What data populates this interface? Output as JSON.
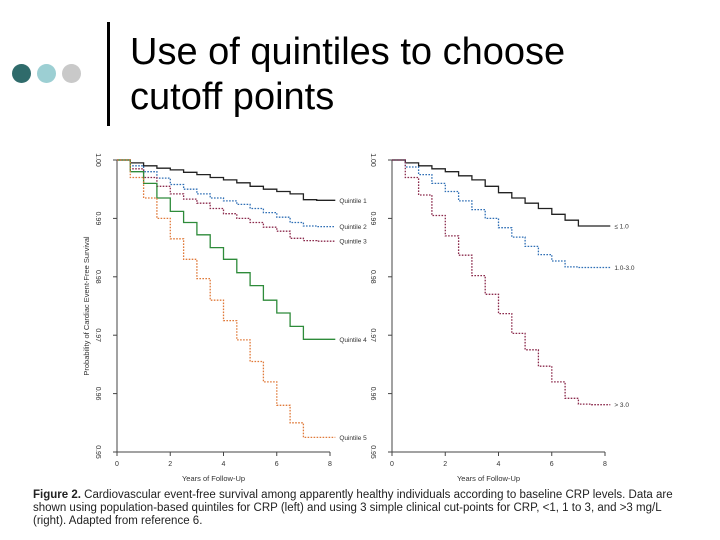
{
  "slide": {
    "title_line1": "Use of quintiles to choose",
    "title_line2": "cutoff points",
    "dot_colors": [
      "#2f6b6b",
      "#9ccfd3",
      "#c9c9c9"
    ],
    "caption_label": "Figure 2.",
    "caption_text": " Cardiovascular event-free survival among apparently healthy individuals according to baseline CRP levels. Data are shown using population-based quintiles for CRP (left) and using 3 simple clinical cut-points for CRP, <1, 1 to 3, and >3 mg/L (right). Adapted from reference 6."
  },
  "chart_data": [
    {
      "type": "line",
      "title": "",
      "xlabel": "Years of Follow-Up",
      "ylabel": "Probability of Cardiac Event-Free Survival",
      "xlim": [
        0,
        8
      ],
      "ylim": [
        0.95,
        1.0
      ],
      "x_ticks": [
        "0",
        "2",
        "4",
        "6",
        "8"
      ],
      "y_ticks": [
        "1.00",
        "0.99",
        "0.98",
        "0.97",
        "0.96",
        "0.95"
      ],
      "step": true,
      "series": [
        {
          "name": "Quintile 1",
          "color": "#222222",
          "dash": "solid",
          "x": [
            0,
            0.5,
            1,
            1.5,
            2,
            2.5,
            3,
            3.5,
            4,
            4.5,
            5,
            5.5,
            6,
            6.5,
            7,
            7.5,
            8.2
          ],
          "y": [
            1.0,
            0.9995,
            0.999,
            0.9986,
            0.9983,
            0.9979,
            0.9975,
            0.997,
            0.9966,
            0.9961,
            0.9955,
            0.995,
            0.9946,
            0.9942,
            0.9932,
            0.9931,
            0.9931
          ]
        },
        {
          "name": "Quintile 2",
          "color": "#2f6fb5",
          "dash": "dotted",
          "x": [
            0,
            0.5,
            1,
            1.5,
            2,
            2.5,
            3,
            3.5,
            4,
            4.5,
            5,
            5.5,
            6,
            6.5,
            7,
            7.5,
            8.2
          ],
          "y": [
            1.0,
            0.999,
            0.998,
            0.9969,
            0.9958,
            0.995,
            0.9942,
            0.9935,
            0.993,
            0.9924,
            0.9917,
            0.991,
            0.9902,
            0.9893,
            0.9887,
            0.9886,
            0.9886
          ]
        },
        {
          "name": "Quintile 3",
          "color": "#8b2a4c",
          "dash": "dotted",
          "x": [
            0,
            0.5,
            1,
            1.5,
            2,
            2.5,
            3,
            3.5,
            4,
            4.5,
            5,
            5.5,
            6,
            6.5,
            7,
            7.5,
            8.2
          ],
          "y": [
            1.0,
            0.9985,
            0.997,
            0.9955,
            0.9942,
            0.9933,
            0.9926,
            0.9917,
            0.9908,
            0.99,
            0.9893,
            0.9885,
            0.9878,
            0.9866,
            0.9862,
            0.9861,
            0.9861
          ]
        },
        {
          "name": "Quintile 4",
          "color": "#2e8b3a",
          "dash": "solid",
          "x": [
            0,
            0.5,
            1,
            1.5,
            2,
            2.5,
            3,
            3.5,
            4,
            4.5,
            5,
            5.5,
            6,
            6.5,
            7,
            7.5,
            8.2
          ],
          "y": [
            1.0,
            0.998,
            0.996,
            0.9935,
            0.9912,
            0.9893,
            0.9872,
            0.985,
            0.983,
            0.9807,
            0.9785,
            0.976,
            0.9738,
            0.9715,
            0.9693,
            0.9693,
            0.9693
          ]
        },
        {
          "name": "Quintile 5",
          "color": "#e07a3a",
          "dash": "dotted",
          "x": [
            0,
            0.5,
            1,
            1.5,
            2,
            2.5,
            3,
            3.5,
            4,
            4.5,
            5,
            5.5,
            6,
            6.5,
            7,
            7.5,
            8.2
          ],
          "y": [
            1.0,
            0.997,
            0.9935,
            0.99,
            0.9865,
            0.983,
            0.9797,
            0.976,
            0.9725,
            0.9692,
            0.9655,
            0.962,
            0.958,
            0.955,
            0.9525,
            0.9525,
            0.9525
          ]
        }
      ],
      "labels": [
        "Quintile 1",
        "Quintile 2",
        "Quintile 3",
        "Quintile 4",
        "Quintile 5"
      ]
    },
    {
      "type": "line",
      "title": "",
      "xlabel": "Years of Follow-Up",
      "ylabel": "",
      "xlim": [
        0,
        8
      ],
      "ylim": [
        0.95,
        1.0
      ],
      "x_ticks": [
        "0",
        "2",
        "4",
        "6",
        "8"
      ],
      "y_ticks": [
        "1.00",
        "0.99",
        "0.98",
        "0.97",
        "0.96",
        "0.95"
      ],
      "step": true,
      "series": [
        {
          "name": "≤ 1.0",
          "color": "#222222",
          "dash": "solid",
          "x": [
            0,
            0.5,
            1,
            1.5,
            2,
            2.5,
            3,
            3.5,
            4,
            4.5,
            5,
            5.5,
            6,
            6.5,
            7,
            7.5,
            8.2
          ],
          "y": [
            1.0,
            0.9995,
            0.999,
            0.9985,
            0.998,
            0.9973,
            0.9966,
            0.9955,
            0.9944,
            0.9935,
            0.9926,
            0.9917,
            0.9907,
            0.9897,
            0.9887,
            0.9887,
            0.9887
          ]
        },
        {
          "name": "1.0-3.0",
          "color": "#2f6fb5",
          "dash": "dotted",
          "x": [
            0,
            0.5,
            1,
            1.5,
            2,
            2.5,
            3,
            3.5,
            4,
            4.5,
            5,
            5.5,
            6,
            6.5,
            7,
            7.5,
            8.2
          ],
          "y": [
            1.0,
            0.9988,
            0.9975,
            0.996,
            0.9946,
            0.993,
            0.9915,
            0.99,
            0.9884,
            0.9868,
            0.9852,
            0.9838,
            0.9827,
            0.9817,
            0.9816,
            0.9816,
            0.9816
          ]
        },
        {
          "name": "> 3.0",
          "color": "#8b2a4c",
          "dash": "dotted",
          "x": [
            0,
            0.5,
            1,
            1.5,
            2,
            2.5,
            3,
            3.5,
            4,
            4.5,
            5,
            5.5,
            6,
            6.5,
            7,
            7.5,
            8.2
          ],
          "y": [
            1.0,
            0.997,
            0.994,
            0.9905,
            0.987,
            0.9837,
            0.9802,
            0.977,
            0.9737,
            0.9703,
            0.9675,
            0.9647,
            0.962,
            0.9592,
            0.9582,
            0.9581,
            0.9581
          ]
        }
      ],
      "labels": [
        "≤ 1.0",
        "1.0-3.0",
        "> 3.0"
      ]
    }
  ]
}
